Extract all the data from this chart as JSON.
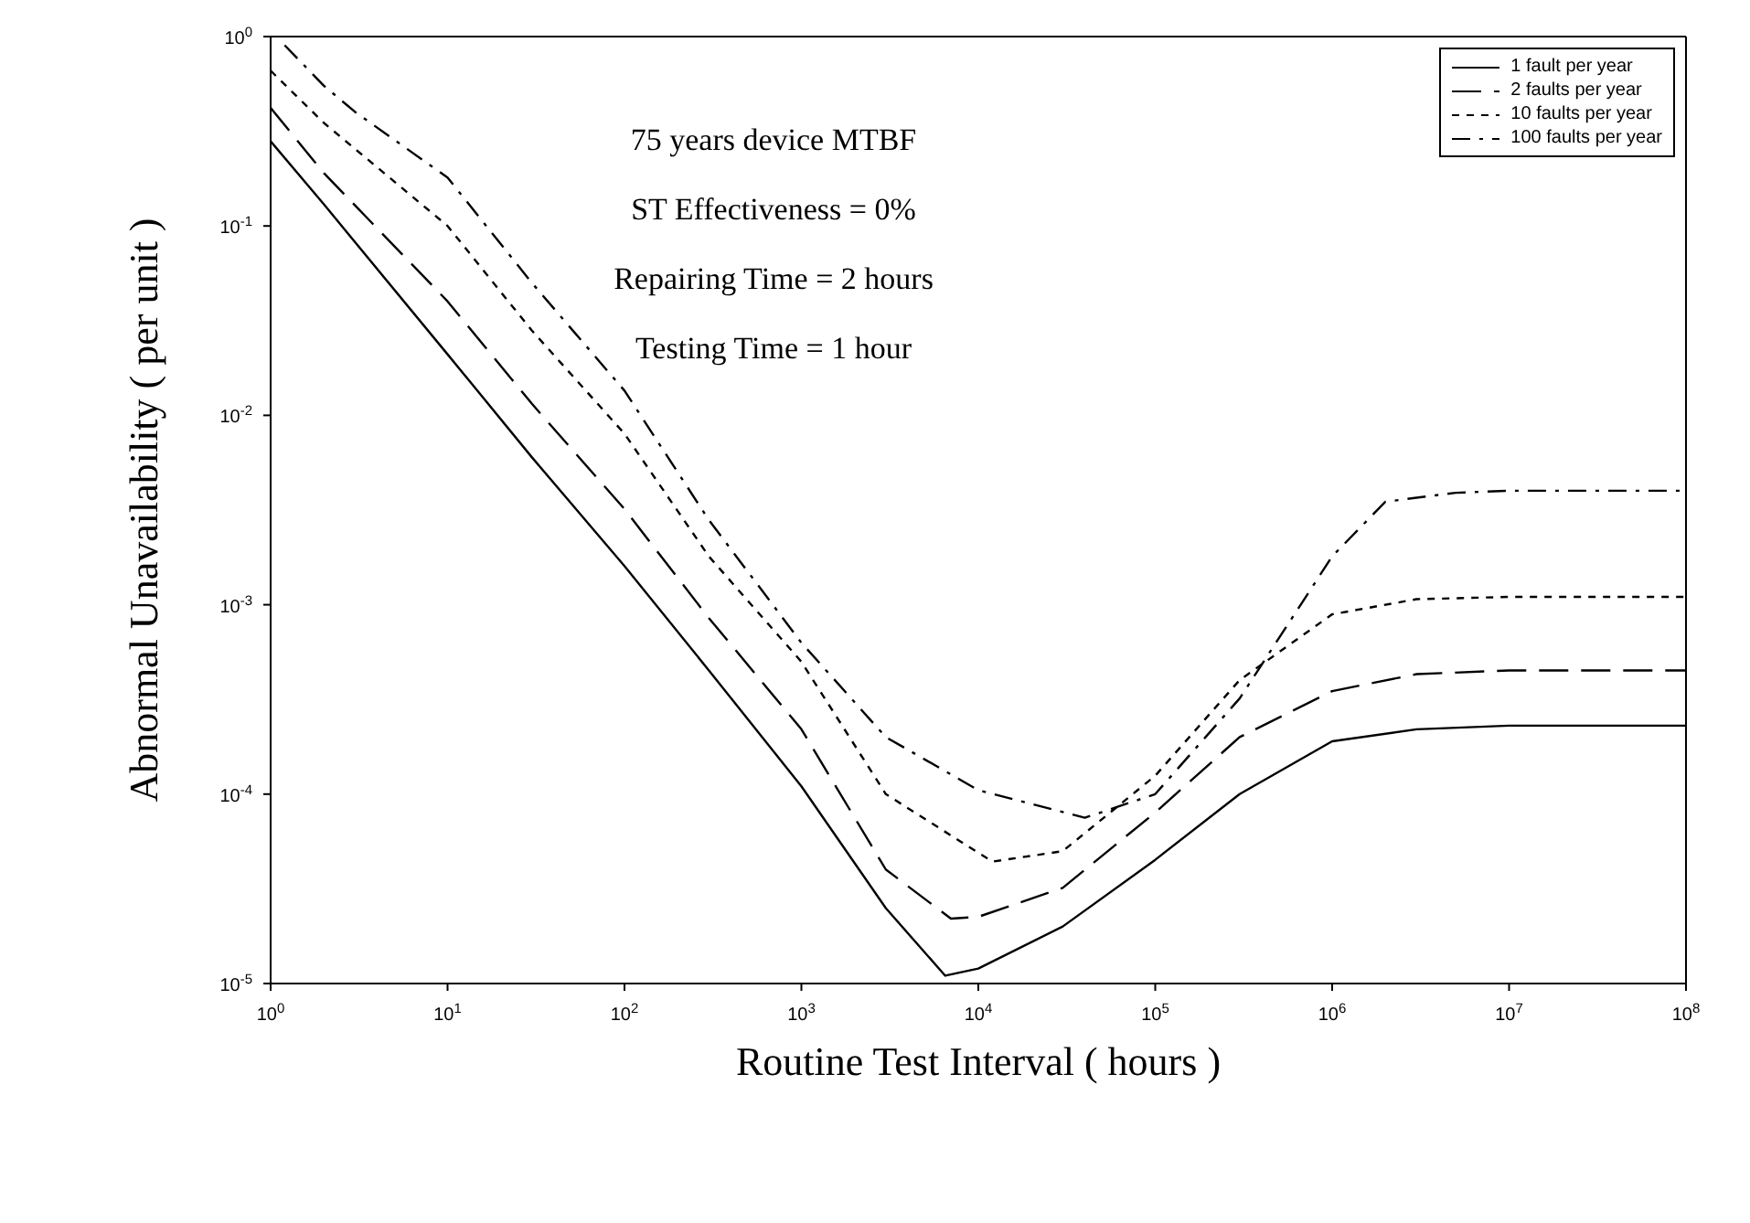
{
  "chart_data": {
    "type": "line",
    "xlabel": "Routine Test Interval ( hours )",
    "ylabel": "Abnormal Unavailability ( per unit )",
    "log": "xy",
    "xlim": [
      1,
      100000000
    ],
    "ylim": [
      1e-05,
      1
    ],
    "xticks": [
      {
        "value": 1,
        "label": "10$^{0}$"
      },
      {
        "value": 10,
        "label": "10$^{1}$"
      },
      {
        "value": 100,
        "label": "10$^{2}$"
      },
      {
        "value": 1000,
        "label": "10$^{3}$"
      },
      {
        "value": 10000,
        "label": "10$^{4}$"
      },
      {
        "value": 100000,
        "label": "10$^{5}$"
      },
      {
        "value": 1000000,
        "label": "10$^{6}$"
      },
      {
        "value": 10000000,
        "label": "10$^{7}$"
      },
      {
        "value": 100000000,
        "label": "10$^{8}$"
      }
    ],
    "yticks": [
      {
        "value": 1e-05,
        "label": "10$^{-5}$"
      },
      {
        "value": 0.0001,
        "label": "10$^{-4}$"
      },
      {
        "value": 0.001,
        "label": "10$^{-3}$"
      },
      {
        "value": 0.01,
        "label": "10$^{-2}$"
      },
      {
        "value": 0.1,
        "label": "10$^{-1}$"
      },
      {
        "value": 1,
        "label": "10$^{0}$"
      }
    ],
    "legend": "top right",
    "marker": "none",
    "annotations": [
      "75 years device MTBF",
      "ST Effectiveness = 0%",
      "Repairing Time = 2 hours",
      "Testing Time = 1 hour"
    ],
    "series": [
      {
        "name": "1 fault per year",
        "color": "#000000",
        "line_style": "solid",
        "x": [
          1,
          2,
          10,
          30,
          100,
          300,
          1000,
          3000,
          6500,
          10000,
          30000,
          100000,
          300000,
          1000000,
          3000000,
          10000000,
          100000000
        ],
        "values": [
          0.28,
          0.13,
          0.021,
          0.006,
          0.0016,
          0.00045,
          0.00011,
          2.5e-05,
          1.1e-05,
          1.2e-05,
          2e-05,
          4.5e-05,
          0.0001,
          0.00019,
          0.00022,
          0.00023,
          0.00023
        ]
      },
      {
        "name": "2 faults per year",
        "color": "#000000",
        "line_style": "dashed",
        "x": [
          1,
          2,
          10,
          30,
          100,
          300,
          1000,
          3000,
          7000,
          10000,
          30000,
          100000,
          300000,
          1000000,
          3000000,
          10000000,
          100000000
        ],
        "values": [
          0.42,
          0.19,
          0.04,
          0.0115,
          0.0032,
          0.00085,
          0.00022,
          4e-05,
          2.2e-05,
          2.25e-05,
          3.2e-05,
          8e-05,
          0.0002,
          0.00035,
          0.00043,
          0.00045,
          0.00045
        ]
      },
      {
        "name": "10 faults per year",
        "color": "#000000",
        "line_style": "dotted",
        "x": [
          1,
          2,
          10,
          30,
          100,
          300,
          1000,
          3000,
          12000,
          30000,
          100000,
          300000,
          1000000,
          3000000,
          10000000,
          100000000
        ],
        "values": [
          0.66,
          0.35,
          0.1,
          0.028,
          0.008,
          0.0018,
          0.0005,
          0.0001,
          4.4e-05,
          5e-05,
          0.000125,
          0.0004,
          0.00089,
          0.00107,
          0.0011,
          0.0011
        ]
      },
      {
        "name": "100 faults per year",
        "color": "#000000",
        "line_style": "dashed",
        "x": [
          1.2,
          2,
          3,
          10,
          30,
          100,
          300,
          1000,
          3000,
          10000,
          40000,
          100000,
          300000,
          1000000,
          2000000,
          5000000,
          10000000,
          100000000
        ],
        "values": [
          0.9,
          0.55,
          0.4,
          0.18,
          0.05,
          0.0135,
          0.0028,
          0.00063,
          0.0002,
          0.000105,
          7.5e-05,
          0.0001,
          0.00032,
          0.0018,
          0.0035,
          0.0039,
          0.004,
          0.004
        ]
      }
    ]
  }
}
